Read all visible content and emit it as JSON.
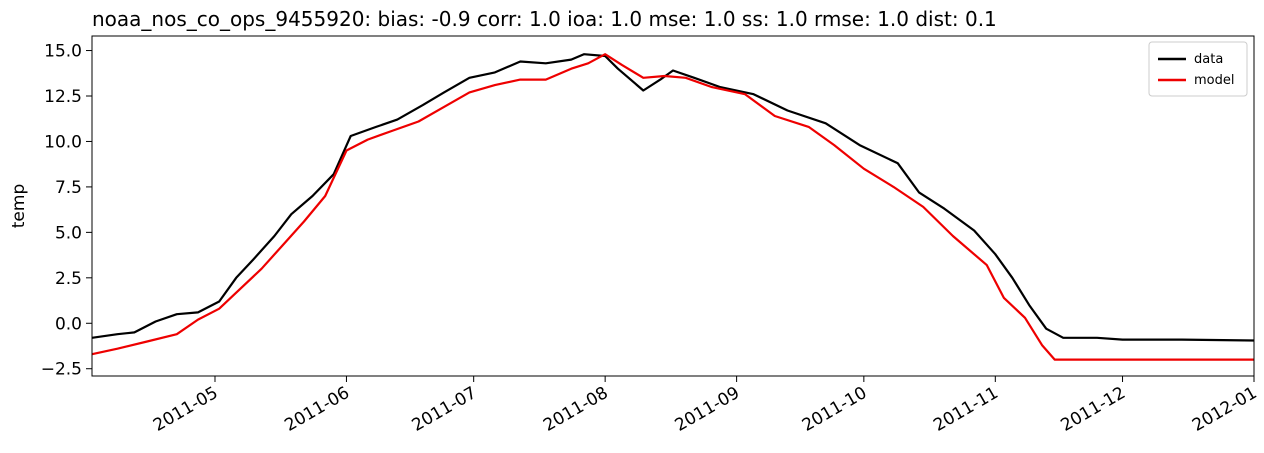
{
  "chart_data": {
    "type": "line",
    "title": "noaa_nos_co_ops_9455920: bias: -0.9  corr: 1.0  ioa: 1.0  mse: 1.0  ss: 1.0  rmse: 1.0  dist: 0.1",
    "xlabel": "",
    "ylabel": "temp",
    "xlim": [
      "2011-04-02",
      "2012-01-01"
    ],
    "ylim": [
      -2.9,
      15.8
    ],
    "x_ticks": [
      "2011-05-01",
      "2011-06-01",
      "2011-07-01",
      "2011-08-01",
      "2011-09-01",
      "2011-10-01",
      "2011-11-01",
      "2011-12-01",
      "2012-01-01"
    ],
    "x_tick_labels": [
      "2011-05",
      "2011-06",
      "2011-07",
      "2011-08",
      "2011-09",
      "2011-10",
      "2011-11",
      "2011-12",
      "2012-01"
    ],
    "y_ticks": [
      -2.5,
      0.0,
      2.5,
      5.0,
      7.5,
      10.0,
      12.5,
      15.0
    ],
    "y_tick_labels": [
      "−2.5",
      "0.0",
      "2.5",
      "5.0",
      "7.5",
      "10.0",
      "12.5",
      "15.0"
    ],
    "grid": false,
    "legend": {
      "placement": "top-right",
      "entries": [
        "data",
        "model"
      ]
    },
    "series": [
      {
        "name": "data",
        "color": "#000000",
        "points": [
          [
            "2011-04-02",
            -0.8
          ],
          [
            "2011-04-08",
            -0.6
          ],
          [
            "2011-04-12",
            -0.5
          ],
          [
            "2011-04-17",
            0.1
          ],
          [
            "2011-04-22",
            0.5
          ],
          [
            "2011-04-27",
            0.6
          ],
          [
            "2011-05-02",
            1.2
          ],
          [
            "2011-05-06",
            2.5
          ],
          [
            "2011-05-10",
            3.5
          ],
          [
            "2011-05-15",
            4.8
          ],
          [
            "2011-05-19",
            6.0
          ],
          [
            "2011-05-24",
            7.0
          ],
          [
            "2011-05-29",
            8.2
          ],
          [
            "2011-06-02",
            10.3
          ],
          [
            "2011-06-08",
            10.8
          ],
          [
            "2011-06-13",
            11.2
          ],
          [
            "2011-06-19",
            12.0
          ],
          [
            "2011-06-24",
            12.7
          ],
          [
            "2011-06-30",
            13.5
          ],
          [
            "2011-07-06",
            13.8
          ],
          [
            "2011-07-12",
            14.4
          ],
          [
            "2011-07-18",
            14.3
          ],
          [
            "2011-07-24",
            14.5
          ],
          [
            "2011-07-27",
            14.8
          ],
          [
            "2011-08-01",
            14.7
          ],
          [
            "2011-08-04",
            14.0
          ],
          [
            "2011-08-10",
            12.8
          ],
          [
            "2011-08-14",
            13.4
          ],
          [
            "2011-08-17",
            13.9
          ],
          [
            "2011-08-22",
            13.5
          ],
          [
            "2011-08-28",
            13.0
          ],
          [
            "2011-09-05",
            12.6
          ],
          [
            "2011-09-13",
            11.7
          ],
          [
            "2011-09-22",
            11.0
          ],
          [
            "2011-09-30",
            9.8
          ],
          [
            "2011-10-09",
            8.8
          ],
          [
            "2011-10-14",
            7.2
          ],
          [
            "2011-10-20",
            6.3
          ],
          [
            "2011-10-27",
            5.1
          ],
          [
            "2011-11-01",
            3.8
          ],
          [
            "2011-11-05",
            2.5
          ],
          [
            "2011-11-09",
            1.0
          ],
          [
            "2011-11-13",
            -0.3
          ],
          [
            "2011-11-17",
            -0.8
          ],
          [
            "2011-11-25",
            -0.8
          ],
          [
            "2011-12-01",
            -0.9
          ],
          [
            "2011-12-15",
            -0.9
          ],
          [
            "2012-01-01",
            -0.95
          ]
        ]
      },
      {
        "name": "model",
        "color": "#ee0000",
        "points": [
          [
            "2011-04-02",
            -1.7
          ],
          [
            "2011-04-08",
            -1.4
          ],
          [
            "2011-04-15",
            -1.0
          ],
          [
            "2011-04-22",
            -0.6
          ],
          [
            "2011-04-27",
            0.2
          ],
          [
            "2011-05-02",
            0.8
          ],
          [
            "2011-05-07",
            1.9
          ],
          [
            "2011-05-12",
            3.0
          ],
          [
            "2011-05-17",
            4.3
          ],
          [
            "2011-05-22",
            5.6
          ],
          [
            "2011-05-27",
            7.0
          ],
          [
            "2011-06-01",
            9.5
          ],
          [
            "2011-06-06",
            10.1
          ],
          [
            "2011-06-12",
            10.6
          ],
          [
            "2011-06-18",
            11.1
          ],
          [
            "2011-06-24",
            11.9
          ],
          [
            "2011-06-30",
            12.7
          ],
          [
            "2011-07-06",
            13.1
          ],
          [
            "2011-07-12",
            13.4
          ],
          [
            "2011-07-18",
            13.4
          ],
          [
            "2011-07-24",
            14.0
          ],
          [
            "2011-07-28",
            14.3
          ],
          [
            "2011-08-01",
            14.8
          ],
          [
            "2011-08-05",
            14.2
          ],
          [
            "2011-08-10",
            13.5
          ],
          [
            "2011-08-15",
            13.6
          ],
          [
            "2011-08-20",
            13.5
          ],
          [
            "2011-08-26",
            13.0
          ],
          [
            "2011-09-03",
            12.6
          ],
          [
            "2011-09-10",
            11.4
          ],
          [
            "2011-09-18",
            10.8
          ],
          [
            "2011-09-24",
            9.8
          ],
          [
            "2011-10-01",
            8.5
          ],
          [
            "2011-10-08",
            7.5
          ],
          [
            "2011-10-15",
            6.4
          ],
          [
            "2011-10-22",
            4.8
          ],
          [
            "2011-10-30",
            3.2
          ],
          [
            "2011-11-03",
            1.4
          ],
          [
            "2011-11-08",
            0.3
          ],
          [
            "2011-11-12",
            -1.2
          ],
          [
            "2011-11-15",
            -2.0
          ],
          [
            "2011-11-25",
            -2.0
          ],
          [
            "2011-12-10",
            -2.0
          ],
          [
            "2012-01-01",
            -2.0
          ]
        ]
      }
    ]
  }
}
